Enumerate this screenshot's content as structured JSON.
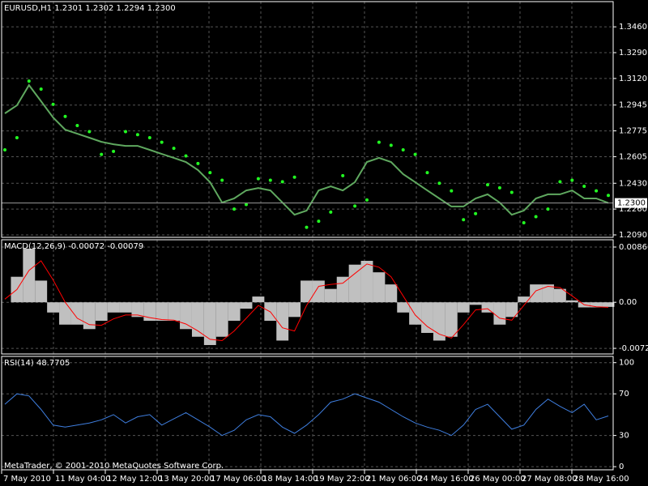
{
  "chart_data": [
    {
      "type": "line",
      "title": "EURUSD,H1  1.2301 1.2302 1.2294 1.2300",
      "ylim": [
        1.2074,
        1.3626
      ],
      "yticks": [
        {
          "value": 1.346,
          "label": "1.3460"
        },
        {
          "value": 1.329,
          "label": "1.3290"
        },
        {
          "value": 1.312,
          "label": "1.3120"
        },
        {
          "value": 1.2945,
          "label": "1.2945"
        },
        {
          "value": 1.2775,
          "label": "1.2775"
        },
        {
          "value": 1.2605,
          "label": "1.2605"
        },
        {
          "value": 1.243,
          "label": "1.2430"
        },
        {
          "value": 1.226,
          "label": "1.2260"
        },
        {
          "value": 1.209,
          "label": "1.2090"
        }
      ],
      "current_price": {
        "value": 1.23,
        "label": "1.2300"
      },
      "grid": true,
      "series": [
        {
          "style": "line",
          "color": "#5fa85f",
          "values": [
            1.289,
            1.2943,
            1.3076,
            1.297,
            1.2863,
            1.2783,
            1.2756,
            1.273,
            1.2703,
            1.2687,
            1.2676,
            1.2676,
            1.265,
            1.2623,
            1.2597,
            1.257,
            1.2517,
            1.2437,
            1.2303,
            1.233,
            1.2383,
            1.2399,
            1.2383,
            1.2303,
            1.2223,
            1.225,
            1.2383,
            1.241,
            1.2383,
            1.2437,
            1.257,
            1.2597,
            1.257,
            1.249,
            1.2437,
            1.2383,
            1.233,
            1.2277,
            1.2277,
            1.233,
            1.2357,
            1.2303,
            1.2223,
            1.225,
            1.233,
            1.2357,
            1.2357,
            1.2383,
            1.233,
            1.233,
            1.23
          ]
        },
        {
          "style": "dots",
          "color": "#22ff22",
          "values": [
            1.265,
            1.273,
            1.3103,
            1.305,
            1.295,
            1.287,
            1.281,
            1.277,
            1.262,
            1.264,
            1.277,
            1.275,
            1.273,
            1.27,
            1.266,
            1.261,
            1.256,
            1.25,
            1.245,
            1.226,
            1.229,
            1.246,
            1.245,
            1.244,
            1.247,
            1.214,
            1.218,
            1.224,
            1.248,
            1.228,
            1.232,
            1.27,
            1.268,
            1.265,
            1.262,
            1.25,
            1.243,
            1.238,
            1.219,
            1.223,
            1.242,
            1.24,
            1.237,
            1.217,
            1.221,
            1.226,
            1.244,
            1.245,
            1.241,
            1.238,
            1.235
          ]
        }
      ]
    },
    {
      "type": "bar",
      "title": "MACD(12,26,9) -0.00072 -0.00079",
      "ylim": [
        -0.0081,
        0.0098
      ],
      "yticks": [
        0.00866,
        {
          "value": 0,
          "label": "0.00"
        },
        -0.00722
      ],
      "grid": true,
      "series": [
        {
          "style": "histogram",
          "color": "#c0c0c0",
          "values": [
            0,
            0.004,
            0.0084,
            0.0034,
            -0.0016,
            -0.0035,
            -0.0035,
            -0.0042,
            -0.0029,
            -0.0016,
            -0.0016,
            -0.0023,
            -0.0029,
            -0.0029,
            -0.0029,
            -0.0042,
            -0.0054,
            -0.0067,
            -0.0054,
            -0.0029,
            -0.001,
            0.0009,
            -0.0029,
            -0.006,
            -0.0023,
            0.0034,
            0.0034,
            0.0021,
            0.004,
            0.0059,
            0.0065,
            0.0047,
            0.0028,
            -0.0016,
            -0.0035,
            -0.0048,
            -0.006,
            -0.0054,
            -0.0016,
            -0.0004,
            -0.0016,
            -0.0035,
            -0.0023,
            0.0009,
            0.0028,
            0.0028,
            0.0021,
            0.0003,
            -0.0008,
            -0.0008,
            -0.00072
          ]
        },
        {
          "style": "line",
          "color": "#ff0000",
          "values": [
            0.0005,
            0.002,
            0.005,
            0.0065,
            0.0035,
            0.0,
            -0.0025,
            -0.0035,
            -0.0036,
            -0.0026,
            -0.002,
            -0.002,
            -0.0024,
            -0.0027,
            -0.0028,
            -0.0034,
            -0.0045,
            -0.0058,
            -0.006,
            -0.0045,
            -0.0025,
            -0.0005,
            -0.0015,
            -0.004,
            -0.0045,
            -0.0005,
            0.0025,
            0.0028,
            0.003,
            0.0045,
            0.006,
            0.0055,
            0.004,
            0.001,
            -0.002,
            -0.0038,
            -0.005,
            -0.0056,
            -0.0035,
            -0.0012,
            -0.001,
            -0.0025,
            -0.0028,
            -0.0005,
            0.0018,
            0.0025,
            0.0023,
            0.001,
            -0.0004,
            -0.0007,
            -0.00079
          ]
        }
      ]
    },
    {
      "type": "line",
      "title": "RSI(14) 48.7705",
      "ylim": [
        -3,
        106
      ],
      "yticks": [
        100,
        70,
        30,
        0
      ],
      "grid": true,
      "series": [
        {
          "style": "line",
          "color": "#3f7fe0",
          "values": [
            60,
            70,
            68,
            55,
            40,
            38,
            40,
            42,
            45,
            50,
            42,
            48,
            50,
            40,
            46,
            52,
            45,
            38,
            30,
            35,
            45,
            50,
            48,
            38,
            32,
            40,
            50,
            62,
            65,
            70,
            66,
            62,
            55,
            48,
            42,
            38,
            35,
            30,
            40,
            55,
            60,
            48,
            36,
            40,
            55,
            65,
            58,
            52,
            60,
            45,
            48.7705
          ]
        }
      ]
    }
  ],
  "time_axis": [
    "7 May 2010",
    "11 May 04:00",
    "12 May 12:00",
    "13 May 20:00",
    "17 May 06:00",
    "18 May 14:00",
    "19 May 22:00",
    "21 May 06:00",
    "24 May 16:00",
    "26 May 00:00",
    "27 May 08:00",
    "28 May 16:00"
  ],
  "copyright": "MetaTrader, © 2001-2010 MetaQuotes Software Corp."
}
